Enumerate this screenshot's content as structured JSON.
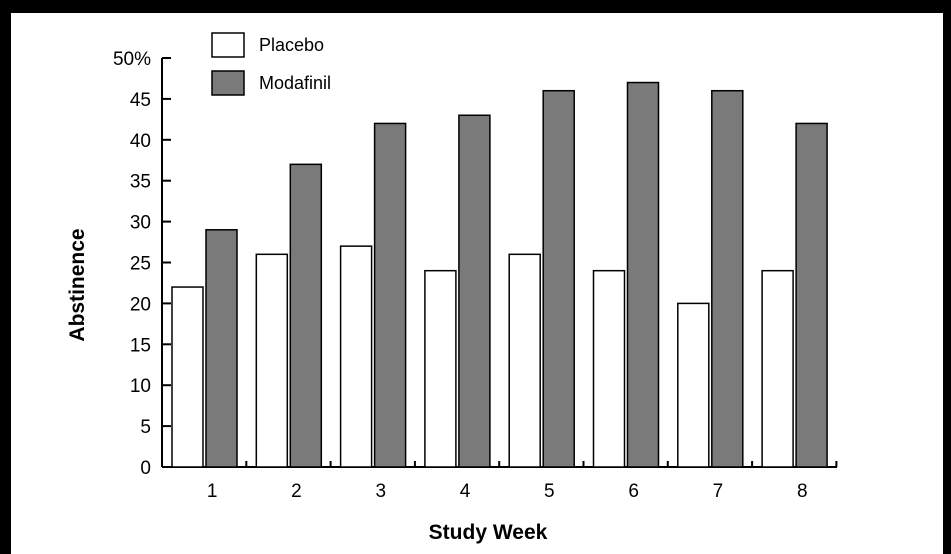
{
  "chart_data": {
    "type": "bar",
    "categories": [
      "1",
      "2",
      "3",
      "4",
      "5",
      "6",
      "7",
      "8"
    ],
    "series": [
      {
        "name": "Placebo",
        "values": [
          22,
          26,
          27,
          24,
          26,
          24,
          20,
          24
        ],
        "color": "#ffffff"
      },
      {
        "name": "Modafinil",
        "values": [
          29,
          37,
          42,
          43,
          46,
          47,
          46,
          42
        ],
        "color": "#7a7a7a"
      }
    ],
    "xlabel": "Study Week",
    "ylabel": "Abstinence",
    "ylim": [
      0,
      50
    ],
    "yticks": [
      "0",
      "5",
      "10",
      "15",
      "20",
      "25",
      "30",
      "35",
      "40",
      "45",
      "50%"
    ],
    "grid": false,
    "legend_position": "top-left"
  }
}
